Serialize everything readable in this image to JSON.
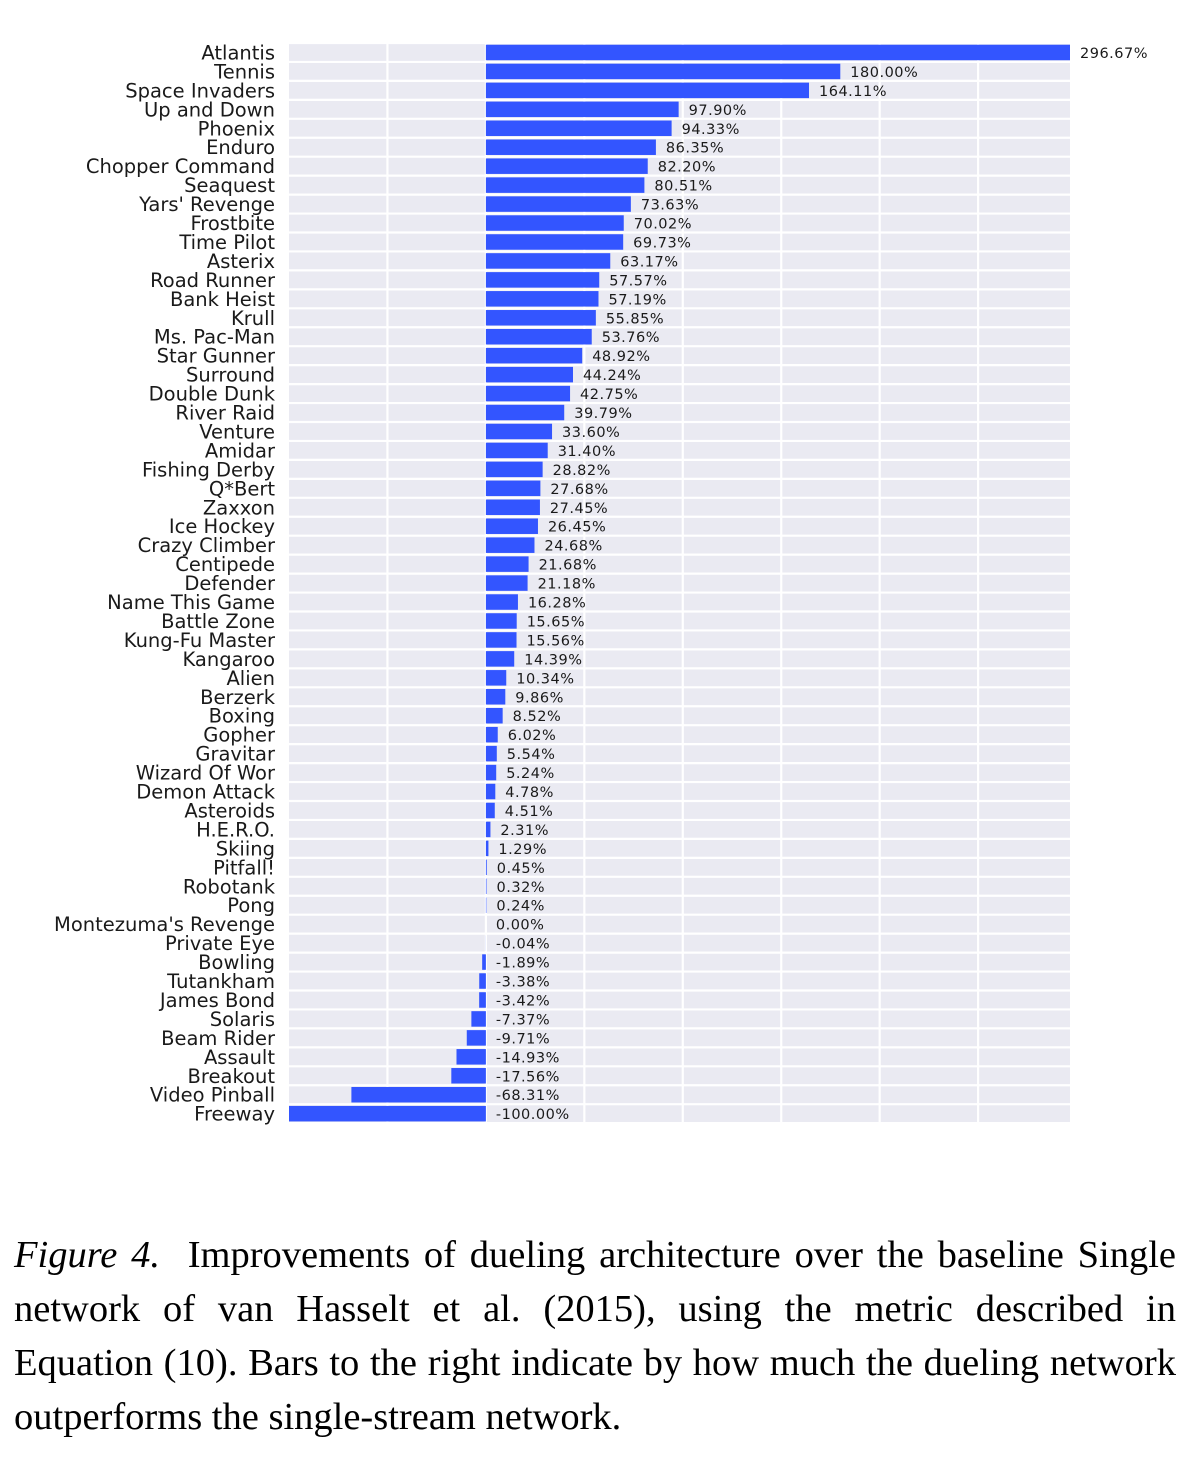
{
  "chart_data": {
    "type": "bar",
    "orientation": "horizontal",
    "categories": [
      "Atlantis",
      "Tennis",
      "Space Invaders",
      "Up and Down",
      "Phoenix",
      "Enduro",
      "Chopper Command",
      "Seaquest",
      "Yars' Revenge",
      "Frostbite",
      "Time Pilot",
      "Asterix",
      "Road Runner",
      "Bank Heist",
      "Krull",
      "Ms. Pac-Man",
      "Star Gunner",
      "Surround",
      "Double Dunk",
      "River Raid",
      "Venture",
      "Amidar",
      "Fishing Derby",
      "Q*Bert",
      "Zaxxon",
      "Ice Hockey",
      "Crazy Climber",
      "Centipede",
      "Defender",
      "Name This Game",
      "Battle Zone",
      "Kung-Fu Master",
      "Kangaroo",
      "Alien",
      "Berzerk",
      "Boxing",
      "Gopher",
      "Gravitar",
      "Wizard Of Wor",
      "Demon Attack",
      "Asteroids",
      "H.E.R.O.",
      "Skiing",
      "Pitfall!",
      "Robotank",
      "Pong",
      "Montezuma's Revenge",
      "Private Eye",
      "Bowling",
      "Tutankham",
      "James Bond",
      "Solaris",
      "Beam Rider",
      "Assault",
      "Breakout",
      "Video Pinball",
      "Freeway"
    ],
    "values": [
      296.67,
      180.0,
      164.11,
      97.9,
      94.33,
      86.35,
      82.2,
      80.51,
      73.63,
      70.02,
      69.73,
      63.17,
      57.57,
      57.19,
      55.85,
      53.76,
      48.92,
      44.24,
      42.75,
      39.79,
      33.6,
      31.4,
      28.82,
      27.68,
      27.45,
      26.45,
      24.68,
      21.68,
      21.18,
      16.28,
      15.65,
      15.56,
      14.39,
      10.34,
      9.86,
      8.52,
      6.02,
      5.54,
      5.24,
      4.78,
      4.51,
      2.31,
      1.29,
      0.45,
      0.32,
      0.24,
      0.0,
      -0.04,
      -1.89,
      -3.38,
      -3.42,
      -7.37,
      -9.71,
      -14.93,
      -17.56,
      -68.31,
      -100.0
    ],
    "value_labels": [
      "296.67%",
      "180.00%",
      "164.11%",
      "97.90%",
      "94.33%",
      "86.35%",
      "82.20%",
      "80.51%",
      "73.63%",
      "70.02%",
      "69.73%",
      "63.17%",
      "57.57%",
      "57.19%",
      "55.85%",
      "53.76%",
      "48.92%",
      "44.24%",
      "42.75%",
      "39.79%",
      "33.60%",
      "31.40%",
      "28.82%",
      "27.68%",
      "27.45%",
      "26.45%",
      "24.68%",
      "21.68%",
      "21.18%",
      "16.28%",
      "15.65%",
      "15.56%",
      "14.39%",
      "10.34%",
      "9.86%",
      "8.52%",
      "6.02%",
      "5.54%",
      "5.24%",
      "4.78%",
      "4.51%",
      "2.31%",
      "1.29%",
      "0.45%",
      "0.32%",
      "0.24%",
      "0.00%",
      "-0.04%",
      "-1.89%",
      "-3.38%",
      "-3.42%",
      "-7.37%",
      "-9.71%",
      "-14.93%",
      "-17.56%",
      "-68.31%",
      "-100.00%"
    ],
    "xlim": [
      -100,
      296.67
    ],
    "grid": true,
    "grid_step": 50,
    "bar_color": "#3355ff",
    "background_color": "#eaeaf2",
    "grid_color": "#ffffff",
    "title": "",
    "xlabel": "",
    "ylabel": ""
  },
  "caption": {
    "label": "Figure 4.",
    "text": "Improvements of dueling architecture over the baseline Single network of van Hasselt et al. (2015), using the metric described in Equation (10). Bars to the right indicate by how much the dueling network outperforms the single-stream network."
  }
}
